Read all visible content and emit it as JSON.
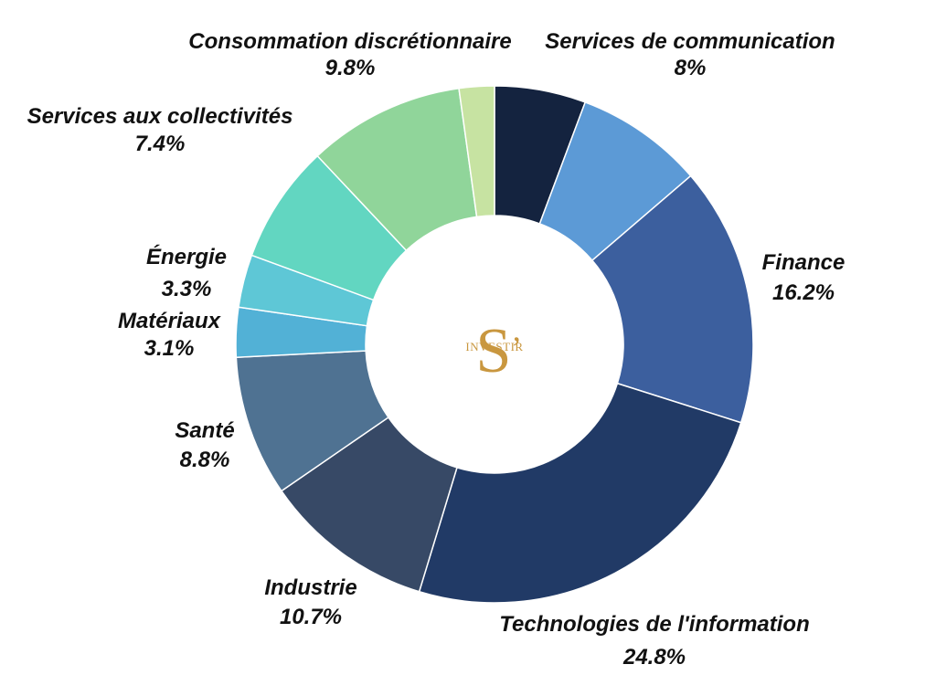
{
  "chart_data": {
    "type": "pie",
    "donut": true,
    "title": "",
    "slices": [
      {
        "label": "",
        "value": 5.7,
        "color": "#14233f"
      },
      {
        "label": "Services de communication",
        "value": 8,
        "value_label": "8%",
        "color": "#5c9ad6"
      },
      {
        "label": "Finance",
        "value": 16.2,
        "value_label": "16.2%",
        "color": "#3c5f9e"
      },
      {
        "label": "Technologies de l'information",
        "value": 24.8,
        "value_label": "24.8%",
        "color": "#213a66"
      },
      {
        "label": "Industrie",
        "value": 10.7,
        "value_label": "10.7%",
        "color": "#374966"
      },
      {
        "label": "Santé",
        "value": 8.8,
        "value_label": "8.8%",
        "color": "#4f7292"
      },
      {
        "label": "Matériaux",
        "value": 3.1,
        "value_label": "3.1%",
        "color": "#52b1d6"
      },
      {
        "label": "Énergie",
        "value": 3.3,
        "value_label": "3.3%",
        "color": "#5ec7d6"
      },
      {
        "label": "Services aux collectivités",
        "value": 7.4,
        "value_label": "7.4%",
        "color": "#62d6c1"
      },
      {
        "label": "Consommation discrétionnaire",
        "value": 9.8,
        "value_label": "9.8%",
        "color": "#90d59a"
      },
      {
        "label": "",
        "value": 2.2,
        "color": "#c7e3a2"
      }
    ]
  },
  "logo": {
    "letter": "S",
    "apostrophe": "’",
    "word": "INVESTIR",
    "color": "#c9973f"
  }
}
